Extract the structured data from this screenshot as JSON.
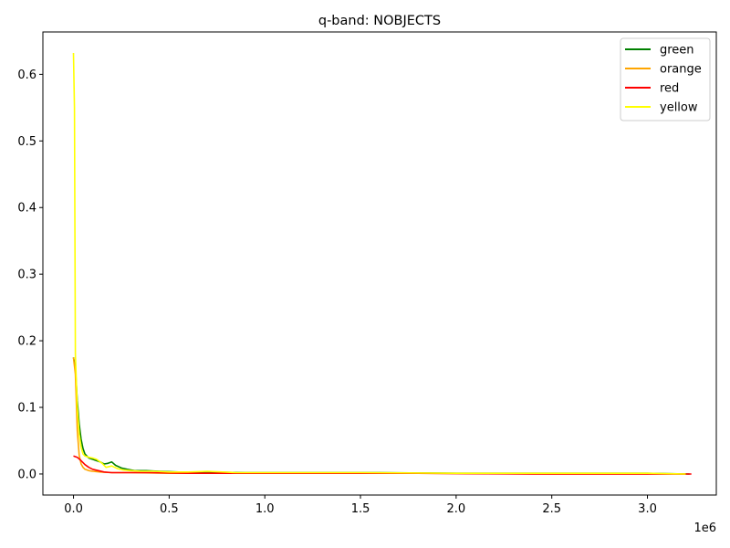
{
  "chart_data": {
    "type": "line",
    "title": "q-band: NOBJECTS",
    "xlabel": "",
    "ylabel": "",
    "x_offset_label": "1e6",
    "xlim": [
      -160000,
      3360000
    ],
    "ylim": [
      -0.0316,
      0.6636
    ],
    "xticks": [
      {
        "value": 0,
        "label": "0.0"
      },
      {
        "value": 500000,
        "label": "0.5"
      },
      {
        "value": 1000000,
        "label": "1.0"
      },
      {
        "value": 1500000,
        "label": "1.5"
      },
      {
        "value": 2000000,
        "label": "2.0"
      },
      {
        "value": 2500000,
        "label": "2.5"
      },
      {
        "value": 3000000,
        "label": "3.0"
      }
    ],
    "yticks": [
      {
        "value": 0.0,
        "label": "0.0"
      },
      {
        "value": 0.1,
        "label": "0.1"
      },
      {
        "value": 0.2,
        "label": "0.2"
      },
      {
        "value": 0.3,
        "label": "0.3"
      },
      {
        "value": 0.4,
        "label": "0.4"
      },
      {
        "value": 0.5,
        "label": "0.5"
      },
      {
        "value": 0.6,
        "label": "0.6"
      }
    ],
    "grid": false,
    "legend_position": "top-right",
    "series": [
      {
        "name": "green",
        "color": "#008000",
        "x": [
          0,
          10000,
          20000,
          30000,
          40000,
          50000,
          60000,
          70000,
          80000,
          100000,
          120000,
          140000,
          160000,
          180000,
          200000,
          220000,
          250000,
          280000,
          320000,
          380000,
          450000,
          550000,
          700000,
          900000,
          1200000,
          1600000,
          2000000,
          2500000,
          3000000,
          3220000
        ],
        "y": [
          0.175,
          0.16,
          0.11,
          0.075,
          0.052,
          0.038,
          0.03,
          0.027,
          0.024,
          0.022,
          0.02,
          0.018,
          0.015,
          0.016,
          0.018,
          0.013,
          0.009,
          0.007,
          0.005,
          0.005,
          0.004,
          0.003,
          0.003,
          0.002,
          0.002,
          0.002,
          0.001,
          0.001,
          0.001,
          0.0
        ]
      },
      {
        "name": "orange",
        "color": "#ffa500",
        "x": [
          0,
          10000,
          20000,
          30000,
          40000,
          50000,
          60000,
          80000,
          100000,
          140000,
          200000,
          300000,
          500000,
          800000,
          1200000,
          1800000,
          2500000,
          3200000
        ],
        "y": [
          0.175,
          0.15,
          0.065,
          0.028,
          0.015,
          0.01,
          0.007,
          0.005,
          0.004,
          0.003,
          0.002,
          0.002,
          0.001,
          0.001,
          0.001,
          0.001,
          0.0,
          0.0
        ]
      },
      {
        "name": "red",
        "color": "#ff0000",
        "x": [
          0,
          20000,
          40000,
          60000,
          80000,
          100000,
          130000,
          160000,
          200000,
          250000,
          300000,
          400000,
          600000,
          900000,
          1300000,
          1800000,
          2400000,
          3000000,
          3230000
        ],
        "y": [
          0.027,
          0.025,
          0.02,
          0.014,
          0.01,
          0.007,
          0.005,
          0.003,
          0.002,
          0.002,
          0.002,
          0.002,
          0.001,
          0.001,
          0.001,
          0.001,
          0.0,
          0.0,
          0.0
        ]
      },
      {
        "name": "yellow",
        "color": "#ffff00",
        "x": [
          0,
          5000,
          10000,
          20000,
          30000,
          40000,
          50000,
          60000,
          80000,
          100000,
          120000,
          150000,
          170000,
          200000,
          230000,
          260000,
          300000,
          350000,
          420000,
          500000,
          600000,
          700000,
          850000,
          1000000,
          1500000,
          2000000,
          2500000,
          3000000,
          3200000
        ],
        "y": [
          0.632,
          0.55,
          0.18,
          0.1,
          0.06,
          0.04,
          0.03,
          0.027,
          0.025,
          0.024,
          0.022,
          0.016,
          0.01,
          0.012,
          0.008,
          0.006,
          0.005,
          0.004,
          0.004,
          0.003,
          0.003,
          0.004,
          0.002,
          0.002,
          0.002,
          0.001,
          0.001,
          0.001,
          0.0
        ]
      }
    ]
  }
}
